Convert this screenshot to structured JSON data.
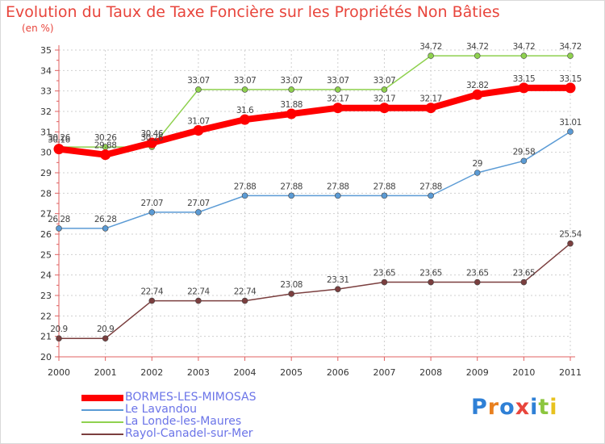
{
  "title": "Evolution du Taux de Taxe Foncière sur les Propriétés Non Bâties",
  "unit_label": "(en %)",
  "logo_text": "Proxiti",
  "colors": {
    "title": "#e8453c",
    "legend_text": "#6b74e8",
    "axis": "#e06060",
    "grid": "#cfcfcf"
  },
  "chart_data": {
    "type": "line",
    "title": "Evolution du Taux de Taxe Foncière sur les Propriétés Non Bâties",
    "ylabel": "(en %)",
    "xlabel": "",
    "x": [
      "2000",
      "2001",
      "2002",
      "2003",
      "2004",
      "2005",
      "2006",
      "2007",
      "2008",
      "2009",
      "2010",
      "2011"
    ],
    "ylim": [
      20,
      35
    ],
    "yticks": [
      "20",
      "21",
      "22",
      "23",
      "24",
      "25",
      "26",
      "27",
      "28",
      "29",
      "30",
      "31",
      "32",
      "33",
      "34",
      "35"
    ],
    "grid": true,
    "series": [
      {
        "name": "BORMES-LES-MIMOSAS",
        "color": "#ff0000",
        "values": [
          30.16,
          29.88,
          30.46,
          31.07,
          31.6,
          31.88,
          32.17,
          32.17,
          32.17,
          32.82,
          33.15,
          33.15
        ],
        "labels": [
          "30.16",
          "29.88",
          "30.46",
          "31.07",
          "31.6",
          "31.88",
          "32.17",
          "32.17",
          "32.17",
          "32.82",
          "33.15",
          "33.15"
        ]
      },
      {
        "name": "Le Lavandou",
        "color": "#5b9bd5",
        "values": [
          26.28,
          26.28,
          27.07,
          27.07,
          27.88,
          27.88,
          27.88,
          27.88,
          27.88,
          29.0,
          29.58,
          31.01
        ],
        "labels": [
          "26.28",
          "26.28",
          "27.07",
          "27.07",
          "27.88",
          "27.88",
          "27.88",
          "27.88",
          "27.88",
          "29",
          "29.58",
          "31.01"
        ]
      },
      {
        "name": "La Londe-les-Maures",
        "color": "#8fd14f",
        "values": [
          30.26,
          30.26,
          30.26,
          33.07,
          33.07,
          33.07,
          33.07,
          33.07,
          34.72,
          34.72,
          34.72,
          34.72
        ],
        "labels": [
          "30.26",
          "30.26",
          "30.26",
          "33.07",
          "33.07",
          "33.07",
          "33.07",
          "33.07",
          "34.72",
          "34.72",
          "34.72",
          "34.72"
        ]
      },
      {
        "name": "Rayol-Canadel-sur-Mer",
        "color": "#7b3f3f",
        "values": [
          20.9,
          20.9,
          22.74,
          22.74,
          22.74,
          23.08,
          23.31,
          23.65,
          23.65,
          23.65,
          23.65,
          25.54
        ],
        "labels": [
          "20.9",
          "20.9",
          "22.74",
          "22.74",
          "22.74",
          "23.08",
          "23.31",
          "23.65",
          "23.65",
          "23.65",
          "23.65",
          "25.54"
        ]
      }
    ]
  }
}
